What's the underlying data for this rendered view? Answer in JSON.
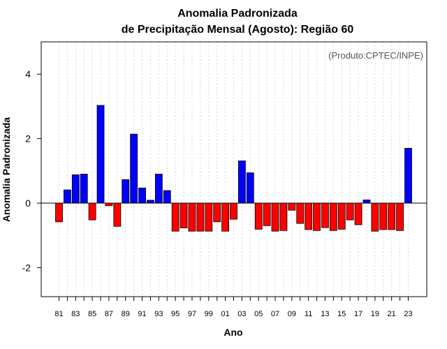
{
  "chart_data": {
    "type": "bar",
    "title_line1": "Anomalia Padronizada",
    "title_line2": "de Precipitação Mensal (Agosto): Região 60",
    "xlabel": "Ano",
    "ylabel": "Anomalia Padronizada",
    "annotation": "(Produto:CPTEC/INPE)",
    "ylim": [
      -2.9,
      5.0
    ],
    "yticks": [
      -2,
      0,
      2,
      4
    ],
    "xtick_labels": [
      "81",
      "83",
      "85",
      "87",
      "89",
      "91",
      "93",
      "95",
      "97",
      "99",
      "01",
      "03",
      "05",
      "07",
      "09",
      "11",
      "13",
      "15",
      "17",
      "19",
      "21",
      "23"
    ],
    "grid": true,
    "categories": [
      "1981",
      "1982",
      "1983",
      "1984",
      "1985",
      "1986",
      "1987",
      "1988",
      "1989",
      "1990",
      "1991",
      "1992",
      "1993",
      "1994",
      "1995",
      "1996",
      "1997",
      "1998",
      "1999",
      "2000",
      "2001",
      "2002",
      "2003",
      "2004",
      "2005",
      "2006",
      "2007",
      "2008",
      "2009",
      "2010",
      "2011",
      "2012",
      "2013",
      "2014",
      "2015",
      "2016",
      "2017",
      "2018",
      "2019",
      "2020",
      "2021",
      "2022",
      "2023"
    ],
    "values": [
      -0.58,
      0.41,
      0.88,
      0.9,
      -0.52,
      3.03,
      -0.08,
      -0.72,
      0.73,
      2.14,
      0.47,
      0.09,
      0.9,
      0.39,
      -0.87,
      -0.77,
      -0.87,
      -0.87,
      -0.87,
      -0.58,
      -0.87,
      -0.5,
      1.31,
      0.94,
      -0.81,
      -0.7,
      -0.87,
      -0.85,
      -0.22,
      -0.63,
      -0.82,
      -0.85,
      -0.76,
      -0.85,
      -0.81,
      -0.52,
      -0.67,
      0.1,
      -0.87,
      -0.82,
      -0.82,
      -0.85,
      1.7
    ],
    "colors": {
      "positive": "#0000ff",
      "negative": "#ff0000",
      "zero_line": "#000000",
      "grid": "#cccccc"
    }
  }
}
